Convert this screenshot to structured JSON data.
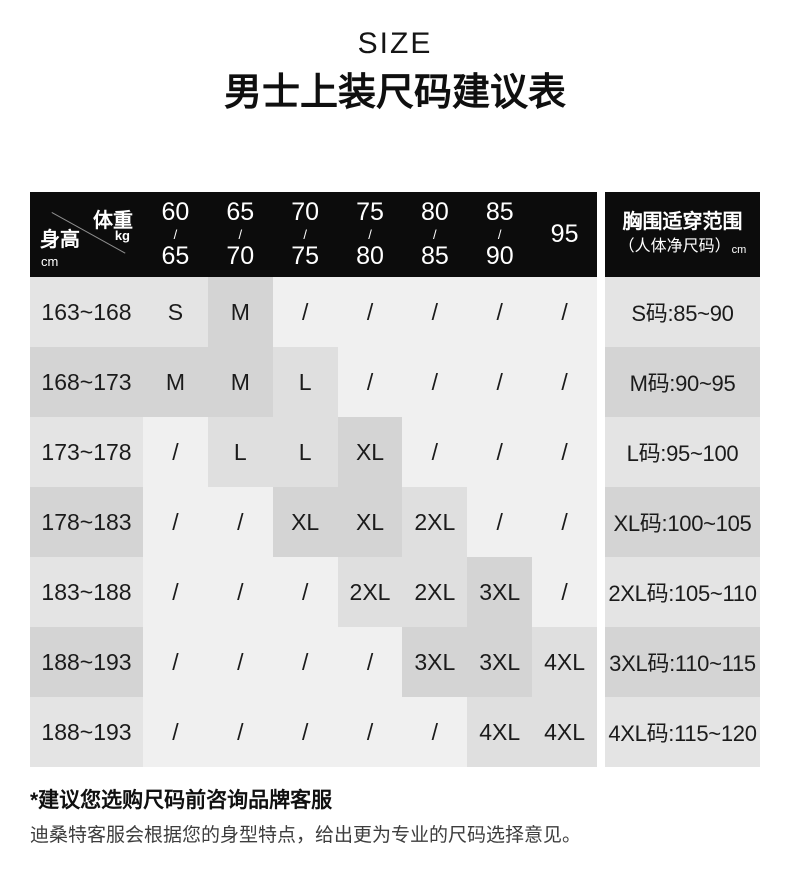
{
  "titles": {
    "size": "SIZE",
    "main": "男士上装尺码建议表"
  },
  "table": {
    "corner": {
      "weight_label": "体重",
      "weight_unit": "kg",
      "height_label": "身高",
      "height_unit": "cm"
    },
    "weight_cols": [
      {
        "lines": [
          "60",
          "/",
          "65"
        ]
      },
      {
        "lines": [
          "65",
          "/",
          "70"
        ]
      },
      {
        "lines": [
          "70",
          "/",
          "75"
        ]
      },
      {
        "lines": [
          "75",
          "/",
          "80"
        ]
      },
      {
        "lines": [
          "80",
          "/",
          "85"
        ]
      },
      {
        "lines": [
          "85",
          "/",
          "90"
        ]
      },
      {
        "lines": [
          "95"
        ]
      }
    ],
    "chest_header": {
      "line1": "胸围适穿范围",
      "line2": "（人体净尺码）",
      "unit": "cm"
    },
    "rows": [
      {
        "height": "163~168",
        "cells": [
          "S",
          "M",
          "/",
          "/",
          "/",
          "/",
          "/"
        ],
        "chest": "S码:85~90"
      },
      {
        "height": "168~173",
        "cells": [
          "M",
          "M",
          "L",
          "/",
          "/",
          "/",
          "/"
        ],
        "chest": "M码:90~95"
      },
      {
        "height": "173~178",
        "cells": [
          "/",
          "L",
          "L",
          "XL",
          "/",
          "/",
          "/"
        ],
        "chest": "L码:95~100"
      },
      {
        "height": "178~183",
        "cells": [
          "/",
          "/",
          "XL",
          "XL",
          "2XL",
          "/",
          "/"
        ],
        "chest": "XL码:100~105"
      },
      {
        "height": "183~188",
        "cells": [
          "/",
          "/",
          "/",
          "2XL",
          "2XL",
          "3XL",
          "/"
        ],
        "chest": "2XL码:105~110"
      },
      {
        "height": "188~193",
        "cells": [
          "/",
          "/",
          "/",
          "/",
          "3XL",
          "3XL",
          "4XL"
        ],
        "chest": "3XL码:110~115"
      },
      {
        "height": "188~193",
        "cells": [
          "/",
          "/",
          "/",
          "/",
          "/",
          "4XL",
          "4XL"
        ],
        "chest": "4XL码:115~120"
      }
    ]
  },
  "footer": {
    "note": "*建议您选购尺码前咨询品牌客服",
    "detail": "迪桑特客服会根据您的身型特点，给出更为专业的尺码选择意见。"
  },
  "colors": {
    "header_bg": "#0c0c0c",
    "row_light": "#e4e4e4",
    "row_dark": "#d4d4d4",
    "highlight_medium": "#dfdfdf",
    "cell_empty": "#f0f0f0"
  },
  "chart_data": {
    "type": "table",
    "title": "男士上装尺码建议表",
    "row_axis": "身高cm",
    "col_axis": "体重kg",
    "columns": [
      "60/65",
      "65/70",
      "70/75",
      "75/80",
      "80/85",
      "85/90",
      "95",
      "胸围适穿范围（人体净尺码）cm"
    ],
    "rows": [
      [
        "163~168",
        "S",
        "M",
        "/",
        "/",
        "/",
        "/",
        "/",
        "S码:85~90"
      ],
      [
        "168~173",
        "M",
        "M",
        "L",
        "/",
        "/",
        "/",
        "/",
        "M码:90~95"
      ],
      [
        "173~178",
        "/",
        "L",
        "L",
        "XL",
        "/",
        "/",
        "/",
        "L码:95~100"
      ],
      [
        "178~183",
        "/",
        "/",
        "XL",
        "XL",
        "2XL",
        "/",
        "/",
        "XL码:100~105"
      ],
      [
        "183~188",
        "/",
        "/",
        "/",
        "2XL",
        "2XL",
        "3XL",
        "/",
        "2XL码:105~110"
      ],
      [
        "188~193",
        "/",
        "/",
        "/",
        "/",
        "3XL",
        "3XL",
        "4XL",
        "3XL码:110~115"
      ],
      [
        "188~193",
        "/",
        "/",
        "/",
        "/",
        "/",
        "4XL",
        "4XL",
        "4XL码:115~120"
      ]
    ]
  }
}
